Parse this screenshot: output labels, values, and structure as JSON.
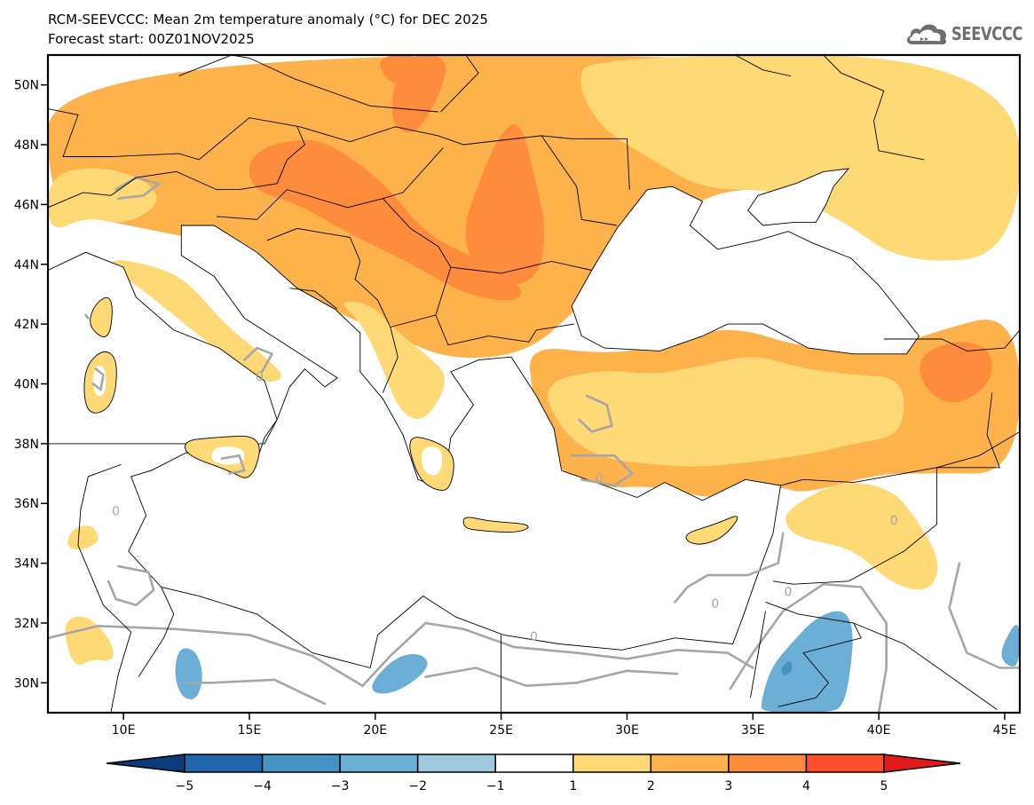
{
  "header": {
    "title": "RCM-SEEVCCC: Mean 2m temperature anomaly (°C) for DEC 2025",
    "subtitle": "Forecast start: 00Z01NOV2025",
    "logo_text": "SEEVCCC",
    "logo_icon": "cloud-icon"
  },
  "chart_data": {
    "type": "heatmap",
    "title": "RCM-SEEVCCC: Mean 2m temperature anomaly (°C) for DEC 2025",
    "subtitle": "Forecast start: 00Z01NOV2025",
    "variable": "Mean 2m temperature anomaly",
    "units": "°C",
    "xlabel": "",
    "ylabel": "",
    "xlim": [
      7.0,
      45.6
    ],
    "ylim": [
      29.0,
      51.0
    ],
    "x_ticks": [
      10,
      15,
      20,
      25,
      30,
      35,
      40,
      45
    ],
    "x_tick_labels": [
      "10E",
      "15E",
      "20E",
      "25E",
      "30E",
      "35E",
      "40E",
      "45E"
    ],
    "y_ticks": [
      30,
      32,
      34,
      36,
      38,
      40,
      42,
      44,
      46,
      48,
      50
    ],
    "y_tick_labels": [
      "30N",
      "32N",
      "34N",
      "36N",
      "38N",
      "40N",
      "42N",
      "44N",
      "46N",
      "48N",
      "50N"
    ],
    "zero_contour_label": "0",
    "colorbar": {
      "levels": [
        -5,
        -4,
        -3,
        -2,
        -1,
        1,
        2,
        3,
        4,
        5
      ],
      "labels": [
        "−5",
        "−4",
        "−3",
        "−2",
        "−1",
        "1",
        "2",
        "3",
        "4",
        "5"
      ],
      "colors": [
        "#0b3b7a",
        "#2166ac",
        "#4393c3",
        "#6baed6",
        "#9ecae1",
        "#ffffff",
        "#fed976",
        "#feb24c",
        "#fd8d3c",
        "#fc4e2a",
        "#e31a1c"
      ],
      "extend": "both",
      "placement": "bottom"
    },
    "regions": [
      {
        "name": "central-europe-warm",
        "class": 2,
        "poly": [
          [
            7,
            51
          ],
          [
            45.6,
            51
          ],
          [
            45.6,
            44
          ],
          [
            40,
            45
          ],
          [
            37,
            46.5
          ],
          [
            33,
            46.5
          ],
          [
            30,
            44
          ],
          [
            28,
            42.5
          ],
          [
            26,
            41
          ],
          [
            23,
            40.8
          ],
          [
            21,
            41.5
          ],
          [
            19.5,
            42
          ],
          [
            17,
            43
          ],
          [
            15,
            44.5
          ],
          [
            12,
            45
          ],
          [
            9,
            45.5
          ],
          [
            7,
            46
          ]
        ]
      },
      {
        "name": "hungary-romania-hot",
        "class": 3,
        "poly": [
          [
            15,
            47.8
          ],
          [
            17.5,
            48.3
          ],
          [
            19,
            47.6
          ],
          [
            20.5,
            46.6
          ],
          [
            22,
            45
          ],
          [
            24,
            44.2
          ],
          [
            26,
            43.2
          ],
          [
            25.5,
            42.7
          ],
          [
            23.5,
            43
          ],
          [
            21.5,
            44
          ],
          [
            19,
            45
          ],
          [
            17,
            46
          ],
          [
            15,
            46.5
          ]
        ]
      },
      {
        "name": "romania-hot",
        "class": 3,
        "poly": [
          [
            24,
            46.5
          ],
          [
            25,
            48.5
          ],
          [
            25.8,
            48.8
          ],
          [
            26.3,
            47
          ],
          [
            26.8,
            45.2
          ],
          [
            26.5,
            43.5
          ],
          [
            25,
            43.2
          ],
          [
            23.8,
            44
          ],
          [
            23.5,
            45.2
          ]
        ]
      },
      {
        "name": "slovakia-hot",
        "class": 3,
        "poly": [
          [
            21,
            51
          ],
          [
            23,
            51
          ],
          [
            22.5,
            49.5
          ],
          [
            21.5,
            48.2
          ],
          [
            20.5,
            48.8
          ]
        ]
      },
      {
        "name": "poland-hot",
        "class": 3,
        "poly": [
          [
            20,
            51
          ],
          [
            22,
            51
          ],
          [
            22,
            50
          ],
          [
            20.5,
            50
          ]
        ]
      },
      {
        "name": "alps-mild",
        "class": 1,
        "poly": [
          [
            7,
            47
          ],
          [
            9,
            47.3
          ],
          [
            11,
            46.8
          ],
          [
            11.5,
            46
          ],
          [
            10,
            45.3
          ],
          [
            8.5,
            45.6
          ],
          [
            7,
            45
          ]
        ]
      },
      {
        "name": "ukraine-mild",
        "class": 1,
        "poly": [
          [
            28.5,
            51
          ],
          [
            45.6,
            51
          ],
          [
            45.6,
            44.3
          ],
          [
            41,
            44
          ],
          [
            38.5,
            45.5
          ],
          [
            36,
            46.5
          ],
          [
            33,
            46.5
          ],
          [
            31,
            47.5
          ],
          [
            29,
            48.5
          ],
          [
            28,
            50
          ]
        ]
      },
      {
        "name": "anatolia-warm",
        "class": 2,
        "poly": [
          [
            26,
            41.3
          ],
          [
            29,
            41
          ],
          [
            31,
            41.2
          ],
          [
            34,
            42
          ],
          [
            37,
            41.2
          ],
          [
            40,
            41
          ],
          [
            42,
            41.7
          ],
          [
            45.6,
            42.5
          ],
          [
            45.6,
            37
          ],
          [
            42,
            37
          ],
          [
            40,
            37
          ],
          [
            37,
            36.3
          ],
          [
            36,
            36.6
          ],
          [
            34.5,
            36.2
          ],
          [
            33,
            36.2
          ],
          [
            31,
            36.6
          ],
          [
            29,
            36.5
          ],
          [
            27.5,
            37
          ],
          [
            26.5,
            38
          ],
          [
            26.3,
            39.5
          ]
        ]
      },
      {
        "name": "anatolia-mild",
        "class": 1,
        "poly": [
          [
            26.5,
            40
          ],
          [
            29,
            40.5
          ],
          [
            31,
            40.3
          ],
          [
            33,
            40.6
          ],
          [
            35,
            41
          ],
          [
            37,
            40.5
          ],
          [
            39,
            40.3
          ],
          [
            41,
            40.2
          ],
          [
            41,
            38.3
          ],
          [
            39,
            38
          ],
          [
            37,
            37.6
          ],
          [
            35,
            37.4
          ],
          [
            33,
            37.2
          ],
          [
            31,
            37.3
          ],
          [
            29,
            37.5
          ],
          [
            27.5,
            38.3
          ]
        ]
      },
      {
        "name": "east-turkey-hot",
        "class": 3,
        "poly": [
          [
            41.5,
            40.9
          ],
          [
            43,
            41.5
          ],
          [
            44.5,
            41.2
          ],
          [
            44.5,
            40
          ],
          [
            43,
            39.2
          ],
          [
            41.8,
            39.8
          ]
        ]
      },
      {
        "name": "syria-mild",
        "class": 1,
        "poly": [
          [
            36.3,
            35.8
          ],
          [
            38.5,
            36.8
          ],
          [
            40.5,
            36.5
          ],
          [
            41.5,
            35.5
          ],
          [
            42.5,
            34
          ],
          [
            42,
            33
          ],
          [
            40.5,
            33.3
          ],
          [
            39,
            34.5
          ],
          [
            37,
            34.8
          ],
          [
            36.3,
            35.2
          ]
        ]
      },
      {
        "name": "italy-mild",
        "class": 1,
        "poly": [
          [
            9.5,
            44.2
          ],
          [
            11,
            44
          ],
          [
            12.5,
            43.5
          ],
          [
            14,
            42
          ],
          [
            15.5,
            41
          ],
          [
            16.5,
            40.2
          ],
          [
            15.6,
            40
          ],
          [
            14.8,
            40.5
          ],
          [
            13,
            41.6
          ],
          [
            11,
            43
          ],
          [
            9.6,
            43.8
          ]
        ]
      },
      {
        "name": "balkans-mild",
        "class": 1,
        "poly": [
          [
            18.5,
            42.8
          ],
          [
            19.5,
            42
          ],
          [
            20.3,
            40.5
          ],
          [
            21,
            39
          ],
          [
            22,
            38.7
          ],
          [
            23,
            40.2
          ],
          [
            22,
            41
          ],
          [
            20.8,
            41.8
          ],
          [
            19.8,
            42.7
          ]
        ]
      },
      {
        "name": "libya-blue-1",
        "class": -2,
        "poly": [
          [
            12.2,
            31.2
          ],
          [
            12.9,
            31.1
          ],
          [
            13.2,
            30.2
          ],
          [
            12.9,
            29.4
          ],
          [
            12.3,
            29.5
          ],
          [
            12,
            30.3
          ]
        ]
      },
      {
        "name": "libya-blue-2",
        "class": -2,
        "poly": [
          [
            20,
            30.2
          ],
          [
            20.9,
            30.9
          ],
          [
            21.8,
            31
          ],
          [
            22.2,
            30.6
          ],
          [
            21.5,
            30
          ],
          [
            20.5,
            29.6
          ],
          [
            19.8,
            29.7
          ]
        ]
      },
      {
        "name": "jordan-blue",
        "class": -2,
        "poly": [
          [
            35.3,
            29.3
          ],
          [
            35.7,
            30.5
          ],
          [
            36.5,
            31.3
          ],
          [
            37.5,
            32.2
          ],
          [
            38.6,
            32.5
          ],
          [
            39,
            31.8
          ],
          [
            38.9,
            30.5
          ],
          [
            38.6,
            29.2
          ],
          [
            38,
            29
          ],
          [
            35.4,
            29
          ]
        ]
      },
      {
        "name": "jordan-blue-core",
        "class": -3,
        "poly": [
          [
            36.1,
            30.5
          ],
          [
            36.5,
            30.8
          ],
          [
            36.6,
            30.4
          ],
          [
            36.2,
            30.2
          ]
        ]
      },
      {
        "name": "iraq-blue",
        "class": -2,
        "poly": [
          [
            44.8,
            31.1
          ],
          [
            45.6,
            32.3
          ],
          [
            45.6,
            30.5
          ],
          [
            45,
            30.6
          ]
        ]
      },
      {
        "name": "tunisia-mild",
        "class": 1,
        "poly": [
          [
            8,
            35.2
          ],
          [
            8.8,
            35.3
          ],
          [
            9.1,
            34.7
          ],
          [
            8.2,
            34.4
          ],
          [
            7.7,
            34.6
          ]
        ]
      },
      {
        "name": "libya-west-mild",
        "class": 1,
        "poly": [
          [
            7.6,
            32.1
          ],
          [
            8.6,
            32.3
          ],
          [
            9.6,
            31.3
          ],
          [
            9.6,
            30.7
          ],
          [
            8.7,
            30.8
          ],
          [
            8.2,
            30.5
          ],
          [
            7.8,
            31
          ]
        ]
      }
    ]
  },
  "colorbar": {
    "labels": [
      "−5",
      "−4",
      "−3",
      "−2",
      "−1",
      "1",
      "2",
      "3",
      "4",
      "5"
    ]
  }
}
